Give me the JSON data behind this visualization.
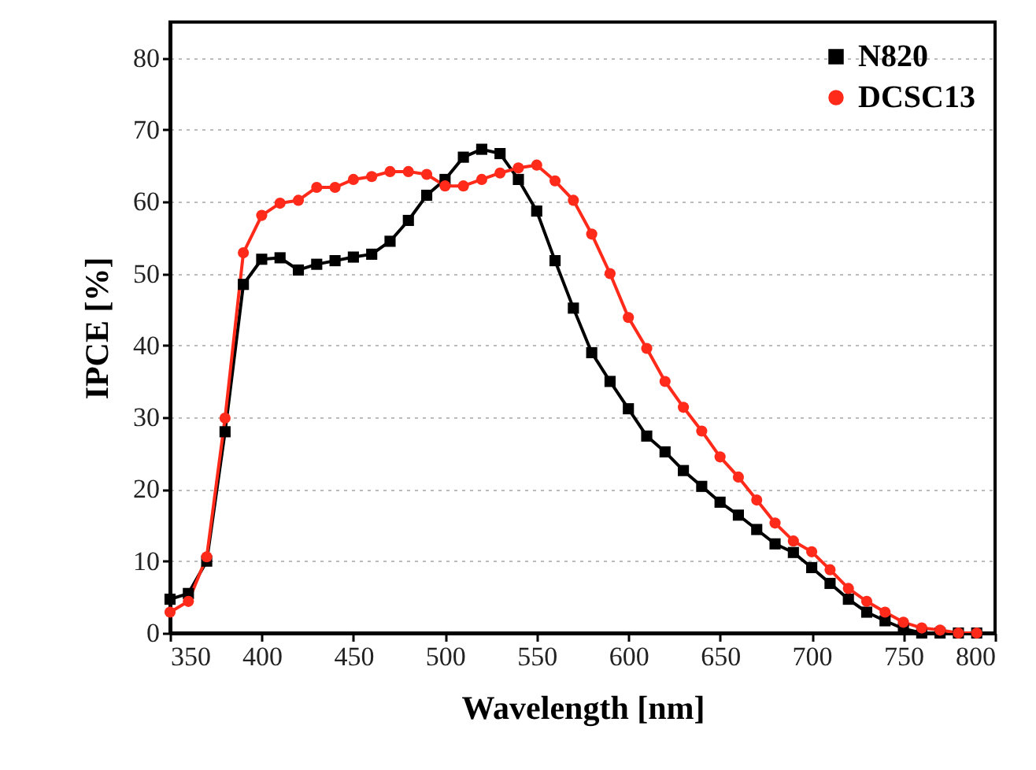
{
  "chart_data": {
    "type": "line",
    "xlabel": "Wavelength [nm]",
    "ylabel": "IPCE [%]",
    "x": [
      350,
      360,
      370,
      380,
      390,
      400,
      410,
      420,
      430,
      440,
      450,
      460,
      470,
      480,
      490,
      500,
      510,
      520,
      530,
      540,
      550,
      560,
      570,
      580,
      590,
      600,
      610,
      620,
      630,
      640,
      650,
      660,
      670,
      680,
      690,
      700,
      710,
      720,
      730,
      740,
      750,
      760,
      770,
      780,
      790
    ],
    "series": [
      {
        "name": "N820",
        "color": "#000000",
        "marker": "square",
        "values": [
          4.7,
          5.5,
          10,
          28,
          48.5,
          52,
          52.2,
          50.5,
          51.3,
          51.8,
          52.3,
          52.7,
          54.5,
          57.4,
          60.9,
          63.1,
          66.2,
          67.3,
          66.7,
          63.1,
          58.7,
          51.8,
          45.2,
          39,
          35,
          31.2,
          27.4,
          25.2,
          22.6,
          20.4,
          18.2,
          16.4,
          14.4,
          12.4,
          11.2,
          9.1,
          6.9,
          4.7,
          2.9,
          1.7,
          0.6,
          0,
          0,
          0,
          0
        ]
      },
      {
        "name": "DCSC13",
        "color": "#ff2a1a",
        "marker": "circle",
        "values": [
          2.9,
          4.4,
          10.6,
          29.9,
          52.9,
          58.1,
          59.8,
          60.2,
          62,
          62,
          63.1,
          63.5,
          64.2,
          64.2,
          63.8,
          62.2,
          62.2,
          63.1,
          64,
          64.7,
          65.1,
          62.9,
          60.2,
          55.5,
          50,
          43.9,
          39.6,
          35,
          31.4,
          28.1,
          24.5,
          21.7,
          18.5,
          15.3,
          12.8,
          11.3,
          8.8,
          6.2,
          4.4,
          2.9,
          1.5,
          0.7,
          0.4,
          0,
          0
        ]
      }
    ],
    "xlim": [
      350,
      800
    ],
    "xticks": [
      350,
      400,
      450,
      500,
      550,
      600,
      650,
      700,
      750,
      800
    ],
    "ylim": [
      0,
      85
    ],
    "yticks": [
      0,
      10,
      20,
      30,
      40,
      50,
      60,
      70,
      80
    ],
    "grid": "y",
    "legend": "top right",
    "line_style": "solid"
  }
}
